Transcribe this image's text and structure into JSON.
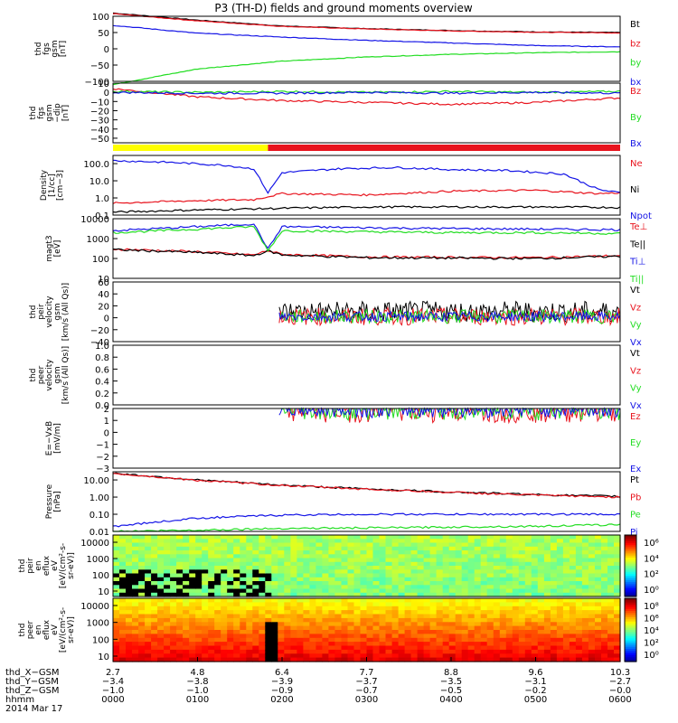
{
  "title": "P3 (TH-D) fields and ground moments overview",
  "colors": {
    "black": "#000000",
    "red": "#e8141e",
    "green": "#22dd22",
    "blue": "#1515e6",
    "yellow": "#ffff00"
  },
  "chart_data": [
    {
      "type": "line",
      "ylabel": [
        "thd",
        "fgs",
        "gsm",
        "[nT]"
      ],
      "yticks": [
        "100",
        "50",
        "0",
        "−50",
        "−100"
      ],
      "ylim": [
        -100,
        100
      ],
      "series": [
        {
          "name": "Bt",
          "color": "black",
          "x": [
            0,
            60,
            120,
            180,
            240,
            300,
            360
          ],
          "values": [
            110,
            88,
            70,
            62,
            56,
            52,
            50
          ]
        },
        {
          "name": "bz",
          "color": "red",
          "x": [
            0,
            60,
            120,
            180,
            240,
            300,
            360
          ],
          "values": [
            108,
            86,
            69,
            61,
            55,
            51,
            49
          ]
        },
        {
          "name": "by",
          "color": "green",
          "x": [
            0,
            60,
            120,
            180,
            240,
            300,
            360
          ],
          "values": [
            -110,
            -62,
            -38,
            -25,
            -17,
            -12,
            -9
          ]
        },
        {
          "name": "bx",
          "color": "blue",
          "x": [
            0,
            60,
            120,
            180,
            240,
            300,
            360
          ],
          "values": [
            72,
            48,
            36,
            26,
            18,
            10,
            6
          ]
        }
      ]
    },
    {
      "type": "line",
      "ylabel": [
        "thd",
        "fgs",
        "gsm",
        "−dip",
        "[nT]"
      ],
      "yticks": [
        "10",
        "0",
        "−10",
        "−20",
        "−30",
        "−40",
        "−50"
      ],
      "ylim": [
        -55,
        10
      ],
      "series": [
        {
          "name": "Bz",
          "color": "red",
          "x": [
            0,
            60,
            120,
            180,
            240,
            300,
            360
          ],
          "values": [
            4,
            -5,
            -9,
            -11,
            -13,
            -11,
            -6
          ]
        },
        {
          "name": "By",
          "color": "green",
          "x": [
            0,
            60,
            120,
            180,
            240,
            300,
            360
          ],
          "values": [
            1,
            0,
            1,
            0,
            1,
            0,
            1
          ]
        },
        {
          "name": "Bx",
          "color": "blue",
          "x": [
            0,
            60,
            120,
            180,
            240,
            300,
            360
          ],
          "values": [
            0,
            -1,
            -1,
            0,
            -1,
            0,
            -1
          ]
        }
      ]
    },
    {
      "type": "line",
      "ylabel": [
        "Density",
        "[1/cc]",
        "[cm−3]"
      ],
      "yticks": [
        "100.0",
        "10.0",
        "1.0",
        "0.1"
      ],
      "ylim": [
        0.1,
        300
      ],
      "yscale": "log",
      "series": [
        {
          "name": "Ne",
          "color": "red",
          "x": [
            0,
            60,
            100,
            120,
            180,
            240,
            300,
            345,
            360
          ],
          "values": [
            0.5,
            0.7,
            0.8,
            1.8,
            1.5,
            2.5,
            2.8,
            1.8,
            2.0
          ]
        },
        {
          "name": "Ni",
          "color": "black",
          "x": [
            0,
            60,
            120,
            180,
            240,
            300,
            360
          ],
          "values": [
            0.15,
            0.2,
            0.25,
            0.3,
            0.3,
            0.3,
            0.28
          ]
        },
        {
          "name": "Npot",
          "color": "blue",
          "x": [
            0,
            40,
            80,
            100,
            110,
            120,
            160,
            200,
            240,
            280,
            320,
            345,
            360
          ],
          "values": [
            150,
            120,
            80,
            50,
            2,
            30,
            50,
            60,
            45,
            40,
            25,
            3,
            2
          ]
        }
      ]
    },
    {
      "type": "line",
      "ylabel": [
        "magt3",
        "[eV]"
      ],
      "yticks": [
        "10000",
        "1000",
        "100",
        "10"
      ],
      "ylim": [
        10,
        10000
      ],
      "yscale": "log",
      "series": [
        {
          "name": "Te⊥",
          "color": "red",
          "x": [
            0,
            60,
            100,
            110,
            120,
            180,
            240,
            300,
            360
          ],
          "values": [
            300,
            220,
            150,
            250,
            160,
            120,
            115,
            110,
            140
          ]
        },
        {
          "name": "Te||",
          "color": "black",
          "x": [
            0,
            60,
            100,
            110,
            120,
            180,
            240,
            300,
            360
          ],
          "values": [
            280,
            200,
            140,
            240,
            150,
            110,
            105,
            100,
            130
          ]
        },
        {
          "name": "Ti⊥",
          "color": "blue",
          "x": [
            0,
            60,
            100,
            110,
            120,
            180,
            240,
            300,
            360
          ],
          "values": [
            2500,
            4000,
            5500,
            300,
            4000,
            3500,
            3200,
            3000,
            2800
          ]
        },
        {
          "name": "Ti||",
          "color": "green",
          "x": [
            0,
            60,
            100,
            110,
            120,
            180,
            240,
            300,
            360
          ],
          "values": [
            2000,
            3000,
            4000,
            250,
            2500,
            2200,
            2000,
            2000,
            1800
          ]
        }
      ]
    },
    {
      "type": "line",
      "ylabel": [
        "thd",
        "peir",
        "velocity",
        "gsm",
        "[km/s (All Qs)]"
      ],
      "yticks": [
        "60",
        "40",
        "20",
        "0",
        "−20",
        "−40"
      ],
      "ylim": [
        -40,
        60
      ],
      "series": [
        {
          "name": "Vt",
          "color": "black"
        },
        {
          "name": "Vz",
          "color": "red"
        },
        {
          "name": "Vy",
          "color": "green"
        },
        {
          "name": "Vx",
          "color": "blue"
        }
      ]
    },
    {
      "type": "line",
      "ylabel": [
        "thd",
        "peer",
        "velocity",
        "gsm",
        "[km/s (All Qs)]"
      ],
      "yticks": [
        "1.0",
        "0.8",
        "0.6",
        "0.4",
        "0.2",
        "0.0"
      ],
      "ylim": [
        0,
        1
      ],
      "series": [
        {
          "name": "Vt",
          "color": "black"
        },
        {
          "name": "Vz",
          "color": "red"
        },
        {
          "name": "Vy",
          "color": "green"
        },
        {
          "name": "Vx",
          "color": "blue"
        }
      ]
    },
    {
      "type": "line",
      "ylabel": [
        "E=−VxB",
        "[mV/m]"
      ],
      "yticks": [
        "2",
        "1",
        "0",
        "−1",
        "−2",
        "−3"
      ],
      "ylim": [
        -3,
        2
      ],
      "series": [
        {
          "name": "Ez",
          "color": "red"
        },
        {
          "name": "Ey",
          "color": "green"
        },
        {
          "name": "Ex",
          "color": "blue"
        }
      ]
    },
    {
      "type": "line",
      "ylabel": [
        "Pressure",
        "[nPa]"
      ],
      "yticks": [
        "10.00",
        "1.00",
        "0.10",
        "0.01"
      ],
      "ylim": [
        0.01,
        30
      ],
      "yscale": "log",
      "series": [
        {
          "name": "Pt",
          "color": "black",
          "x": [
            0,
            60,
            120,
            180,
            240,
            300,
            360
          ],
          "values": [
            25,
            10,
            5,
            3,
            2,
            1.4,
            1.1
          ]
        },
        {
          "name": "Pb",
          "color": "red",
          "x": [
            0,
            60,
            120,
            180,
            240,
            300,
            360
          ],
          "values": [
            24,
            9.5,
            4.8,
            2.9,
            1.9,
            1.3,
            1.0
          ]
        },
        {
          "name": "Pe",
          "color": "green",
          "x": [
            0,
            60,
            120,
            180,
            240,
            300,
            360
          ],
          "values": [
            0.01,
            0.012,
            0.015,
            0.016,
            0.018,
            0.02,
            0.025
          ]
        },
        {
          "name": "Pi",
          "color": "blue",
          "x": [
            0,
            60,
            120,
            180,
            240,
            300,
            360
          ],
          "values": [
            0.02,
            0.06,
            0.09,
            0.1,
            0.1,
            0.1,
            0.1
          ]
        }
      ]
    },
    {
      "type": "heatmap",
      "ylabel": [
        "thd",
        "peir",
        "en",
        "eflux",
        "eV",
        "[eV/(cm²-s-",
        "sr-eV)]"
      ],
      "yticks": [
        "10000",
        "1000",
        "100",
        "10"
      ],
      "colorbar": [
        "10⁶",
        "10⁴",
        "10²",
        "10⁰"
      ]
    },
    {
      "type": "heatmap",
      "ylabel": [
        "thd",
        "peer",
        "en",
        "eflux",
        "eV",
        "[eV/(cm²-s-",
        "sr-eV)]"
      ],
      "yticks": [
        "10000",
        "1000",
        "100",
        "10"
      ],
      "colorbar": [
        "10⁸",
        "10⁶",
        "10⁴",
        "10²",
        "10⁰"
      ]
    }
  ],
  "xaxis": {
    "row_labels": [
      "thd_X−GSM",
      "thd_Y−GSM",
      "thd_Z−GSM",
      "hhmm"
    ],
    "date": "2014 Mar 17",
    "ticks": [
      {
        "x": "2.7",
        "y": "−3.4",
        "z": "−1.0",
        "t": "0000"
      },
      {
        "x": "4.8",
        "y": "−3.8",
        "z": "−1.0",
        "t": "0100"
      },
      {
        "x": "6.4",
        "y": "−3.9",
        "z": "−0.9",
        "t": "0200"
      },
      {
        "x": "7.7",
        "y": "−3.7",
        "z": "−0.7",
        "t": "0300"
      },
      {
        "x": "8.8",
        "y": "−3.5",
        "z": "−0.5",
        "t": "0400"
      },
      {
        "x": "9.6",
        "y": "−3.1",
        "z": "−0.2",
        "t": "0500"
      },
      {
        "x": "10.3",
        "y": "−2.7",
        "z": "−0.0",
        "t": "0600"
      }
    ]
  },
  "mode_bar": [
    {
      "color": "yellow",
      "from": 0,
      "to": 110
    },
    {
      "color": "red",
      "from": 110,
      "to": 360
    }
  ]
}
